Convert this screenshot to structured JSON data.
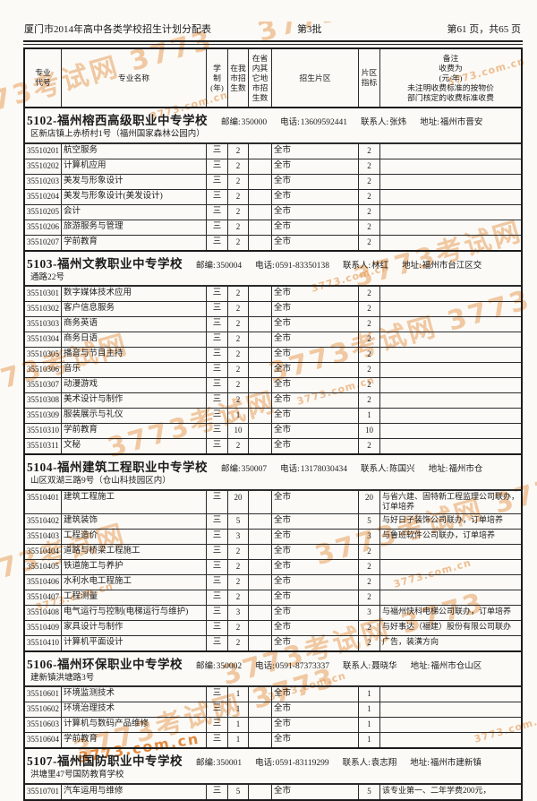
{
  "page_header": {
    "title": "厦门市2014年高中各类学校招生计划分配表",
    "batch": "第3批",
    "page_info": "第61 页，共65 页"
  },
  "table_header": {
    "col_code": "专业\n代号",
    "col_name": "专业名称",
    "col_years": "学\n制\n(年)",
    "col_local": "在我\n市招\n生数",
    "col_other": "在省\n内其\n它地\n市招\n生数",
    "col_district": "招生片区",
    "col_quota": "片区\n指标",
    "col_remark": "备注\n收费为\n(元/年)\n未注明收费标准的按物价\n部门核定的收费标准收费"
  },
  "labels": {
    "postal": "邮编:",
    "phone": "电话:",
    "contact": "联系人:",
    "address": "地址:"
  },
  "watermark": {
    "brand": "3773考试网",
    "brand2": "3773考试网 3773",
    "domain": "3773.com.cn"
  },
  "sections": [
    {
      "school_id": "5102",
      "school_name": "福州榕西高级职业中专学校",
      "postal": "350000",
      "phone": "13609592441",
      "contact": "张炜",
      "address_line1": "福州市晋安",
      "address_line2": "区新店镇上赤桥村1号（福州国家森林公园内）",
      "rows": [
        {
          "code": "35510201",
          "name": "航空服务",
          "years": "三",
          "local": "2",
          "other": "",
          "district": "全市",
          "quota": "2",
          "remark": ""
        },
        {
          "code": "35510202",
          "name": "计算机应用",
          "years": "三",
          "local": "2",
          "other": "",
          "district": "全市",
          "quota": "2",
          "remark": ""
        },
        {
          "code": "35510203",
          "name": "美发与形象设计",
          "years": "三",
          "local": "2",
          "other": "",
          "district": "全市",
          "quota": "2",
          "remark": ""
        },
        {
          "code": "35510204",
          "name": "美发与形象设计(美发设计)",
          "years": "三",
          "local": "2",
          "other": "",
          "district": "全市",
          "quota": "2",
          "remark": ""
        },
        {
          "code": "35510205",
          "name": "会计",
          "years": "三",
          "local": "2",
          "other": "",
          "district": "全市",
          "quota": "2",
          "remark": ""
        },
        {
          "code": "35510206",
          "name": "旅游服务与管理",
          "years": "三",
          "local": "2",
          "other": "",
          "district": "全市",
          "quota": "2",
          "remark": ""
        },
        {
          "code": "35510207",
          "name": "学前教育",
          "years": "三",
          "local": "2",
          "other": "",
          "district": "全市",
          "quota": "2",
          "remark": ""
        }
      ]
    },
    {
      "school_id": "5103",
      "school_name": "福州文教职业中专学校",
      "postal": "350004",
      "phone": "0591-83350138",
      "contact": "林红",
      "address_line1": "福州市台江区交",
      "address_line2": "通路22号",
      "rows": [
        {
          "code": "35510301",
          "name": "数字媒体技术应用",
          "years": "三",
          "local": "2",
          "other": "",
          "district": "全市",
          "quota": "2",
          "remark": ""
        },
        {
          "code": "35510302",
          "name": "客户信息服务",
          "years": "三",
          "local": "2",
          "other": "",
          "district": "全市",
          "quota": "2",
          "remark": ""
        },
        {
          "code": "35510303",
          "name": "商务英语",
          "years": "三",
          "local": "2",
          "other": "",
          "district": "全市",
          "quota": "2",
          "remark": ""
        },
        {
          "code": "35510304",
          "name": "商务日语",
          "years": "三",
          "local": "2",
          "other": "",
          "district": "全市",
          "quota": "2",
          "remark": ""
        },
        {
          "code": "35510305",
          "name": "播音与节目主持",
          "years": "三",
          "local": "2",
          "other": "",
          "district": "全市",
          "quota": "2",
          "remark": ""
        },
        {
          "code": "35510306",
          "name": "音乐",
          "years": "三",
          "local": "2",
          "other": "",
          "district": "全市",
          "quota": "2",
          "remark": ""
        },
        {
          "code": "35510307",
          "name": "动漫游戏",
          "years": "三",
          "local": "2",
          "other": "",
          "district": "全市",
          "quota": "2",
          "remark": ""
        },
        {
          "code": "35510308",
          "name": "美术设计与制作",
          "years": "三",
          "local": "2",
          "other": "",
          "district": "全市",
          "quota": "2",
          "remark": ""
        },
        {
          "code": "35510309",
          "name": "服装展示与礼仪",
          "years": "三",
          "local": "1",
          "other": "",
          "district": "全市",
          "quota": "1",
          "remark": ""
        },
        {
          "code": "35510310",
          "name": "学前教育",
          "years": "三",
          "local": "10",
          "other": "",
          "district": "全市",
          "quota": "10",
          "remark": ""
        },
        {
          "code": "35510311",
          "name": "文秘",
          "years": "三",
          "local": "2",
          "other": "",
          "district": "全市",
          "quota": "2",
          "remark": ""
        }
      ]
    },
    {
      "school_id": "5104",
      "school_name": "福州建筑工程职业中专学校",
      "postal": "350007",
      "phone": "13178030434",
      "contact": "陈国兴",
      "address_line1": "福州市仓",
      "address_line2": "山区双湖三路9号（仓山科技园区内）",
      "rows": [
        {
          "code": "35510401",
          "name": "建筑工程施工",
          "years": "三",
          "local": "20",
          "other": "",
          "district": "全市",
          "quota": "20",
          "remark": "与省六建、固特新工程监理公司联办，订单培养"
        },
        {
          "code": "35510402",
          "name": "建筑装饰",
          "years": "三",
          "local": "5",
          "other": "",
          "district": "全市",
          "quota": "5",
          "remark": "与好日子装饰公司联办，订单培养"
        },
        {
          "code": "35510403",
          "name": "工程造价",
          "years": "三",
          "local": "3",
          "other": "",
          "district": "全市",
          "quota": "3",
          "remark": "与鲁班软件公司联办，订单培养"
        },
        {
          "code": "35510404",
          "name": "道路与桥梁工程施工",
          "years": "三",
          "local": "2",
          "other": "",
          "district": "全市",
          "quota": "2",
          "remark": ""
        },
        {
          "code": "35510405",
          "name": "铁道施工与养护",
          "years": "三",
          "local": "2",
          "other": "",
          "district": "全市",
          "quota": "2",
          "remark": ""
        },
        {
          "code": "35510406",
          "name": "水利水电工程施工",
          "years": "三",
          "local": "2",
          "other": "",
          "district": "全市",
          "quota": "2",
          "remark": ""
        },
        {
          "code": "35510407",
          "name": "工程测量",
          "years": "三",
          "local": "2",
          "other": "",
          "district": "全市",
          "quota": "2",
          "remark": ""
        },
        {
          "code": "35510408",
          "name": "电气运行与控制(电梯运行与维护)",
          "years": "三",
          "local": "3",
          "other": "",
          "district": "全市",
          "quota": "3",
          "remark": "与福州快科电梯公司联办，订单培养"
        },
        {
          "code": "35510409",
          "name": "家具设计与制作",
          "years": "三",
          "local": "2",
          "other": "",
          "district": "全市",
          "quota": "2",
          "remark": "与好事达（福建）股份有限公司联办"
        },
        {
          "code": "35510410",
          "name": "计算机平面设计",
          "years": "三",
          "local": "2",
          "other": "",
          "district": "全市",
          "quota": "2",
          "remark": "广告，装潢方向"
        }
      ]
    },
    {
      "school_id": "5106",
      "school_name": "福州环保职业中专学校",
      "postal": "350002",
      "phone": "0591-87373337",
      "contact": "聂晓华",
      "address_line1": "福州市仓山区",
      "address_line2": "建新镇洪塘路3号",
      "rows": [
        {
          "code": "35510601",
          "name": "环境监测技术",
          "years": "三",
          "local": "1",
          "other": "",
          "district": "全市",
          "quota": "1",
          "remark": ""
        },
        {
          "code": "35510602",
          "name": "环境治理技术",
          "years": "三",
          "local": "1",
          "other": "",
          "district": "全市",
          "quota": "1",
          "remark": ""
        },
        {
          "code": "35510603",
          "name": "计算机与数码产品维修",
          "years": "三",
          "local": "1",
          "other": "",
          "district": "全市",
          "quota": "1",
          "remark": ""
        },
        {
          "code": "35510604",
          "name": "学前教育",
          "years": "三",
          "local": "1",
          "other": "",
          "district": "全市",
          "quota": "1",
          "remark": ""
        }
      ]
    },
    {
      "school_id": "5107",
      "school_name": "福州国防职业中专学校",
      "postal": "350001",
      "phone": "0591-83119299",
      "contact": "袁志翔",
      "address_line1": "福州市建新镇",
      "address_line2": "洪塘里47号国防教育学校",
      "rows": [
        {
          "code": "35510701",
          "name": "汽车运用与维修",
          "years": "三",
          "local": "5",
          "other": "",
          "district": "全市",
          "quota": "5",
          "remark": "该专业第一、二年学费200元，"
        }
      ]
    }
  ]
}
